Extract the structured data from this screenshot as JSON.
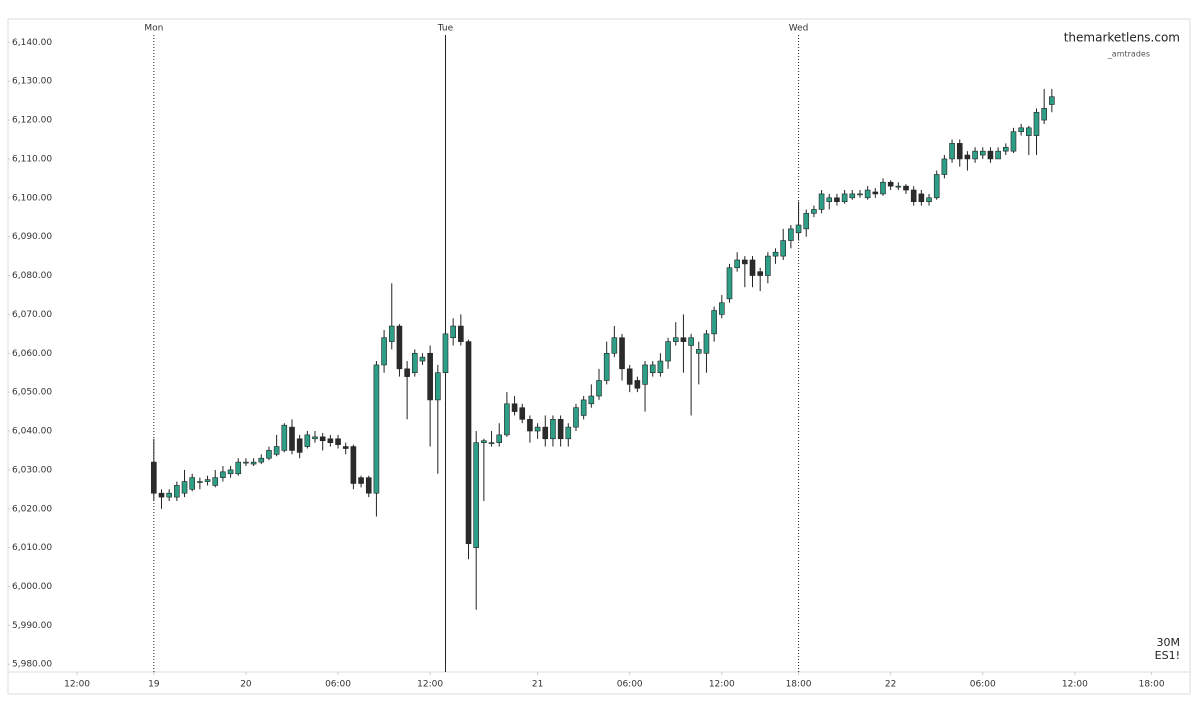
{
  "chart_data": {
    "type": "candlestick",
    "watermark": "themarketlens.com",
    "author": "_amtrades",
    "interval": "30M",
    "symbol": "ES1!",
    "up_color": "#2e9e86",
    "down_color": "#2b2b2b",
    "open": [
      6032,
      6024,
      6023,
      6023,
      6024,
      6025,
      6027,
      6027,
      6026,
      6028,
      6029,
      6029,
      6032,
      6031.5,
      6032,
      6033,
      6034,
      6035,
      6041,
      6038,
      6036,
      6038,
      6038.5,
      6038,
      6038,
      6036,
      6036,
      6028,
      6028,
      6024,
      6057,
      6063,
      6067,
      6056,
      6055,
      6058,
      6060,
      6048,
      6055,
      6064,
      6067,
      6063,
      6010,
      6037,
      6037,
      6037,
      6039,
      6047,
      6046,
      6043,
      6040,
      6041,
      6038,
      6043,
      6038,
      6041,
      6044,
      6047,
      6049,
      6053,
      6060,
      6064,
      6056,
      6053,
      6052,
      6055,
      6055,
      6058,
      6063,
      6064,
      6062,
      6060,
      6060,
      6065,
      6070,
      6074,
      6082,
      6084,
      6084,
      6081,
      6080,
      6085,
      6085,
      6089,
      6091,
      6092,
      6096,
      6097,
      6099,
      6100,
      6099,
      6100,
      6101,
      6100,
      6101.5,
      6101,
      6104,
      6103,
      6103,
      6102,
      6101,
      6099,
      6100,
      6106,
      6110,
      6114,
      6111,
      6110,
      6111,
      6112,
      6110,
      6112,
      6112,
      6117,
      6116,
      6116,
      6120,
      6124
    ],
    "high": [
      6038,
      6025,
      6025,
      6027,
      6030,
      6029,
      6028,
      6028.5,
      6030,
      6031,
      6031,
      6033,
      6033,
      6033,
      6034,
      6036,
      6039,
      6042,
      6043,
      6039,
      6040,
      6040,
      6039.5,
      6039,
      6039,
      6037,
      6036.5,
      6028.5,
      6028.5,
      6058,
      6066,
      6078,
      6067.5,
      6058,
      6061,
      6060,
      6062,
      6057,
      6066,
      6069,
      6070,
      6063.5,
      6040,
      6038,
      6040,
      6042,
      6050,
      6049,
      6047,
      6044,
      6042,
      6044,
      6044,
      6044,
      6042,
      6047,
      6049,
      6052,
      6056,
      6063,
      6067,
      6065,
      6057,
      6054,
      6058,
      6058,
      6060,
      6064,
      6068,
      6070,
      6065,
      6063,
      6066,
      6072,
      6075,
      6083,
      6086,
      6085,
      6085,
      6082,
      6086,
      6087,
      6092,
      6093,
      6099,
      6097,
      6098,
      6102,
      6101,
      6101,
      6102,
      6102,
      6102,
      6103,
      6102.5,
      6105,
      6104.5,
      6104,
      6103.5,
      6103,
      6102,
      6101,
      6107,
      6111,
      6115,
      6115,
      6112,
      6113,
      6113,
      6113,
      6113,
      6114,
      6118,
      6119,
      6118.5,
      6123,
      6128,
      6128
    ],
    "low": [
      6022,
      6020,
      6022,
      6022,
      6023,
      6024.5,
      6025,
      6026,
      6025.5,
      6027,
      6028,
      6028.5,
      6031,
      6031,
      6031.5,
      6032.5,
      6033.5,
      6034.5,
      6034,
      6033,
      6035.5,
      6037,
      6035,
      6036,
      6035.5,
      6034,
      6025,
      6025.5,
      6023,
      6018,
      6055,
      6061,
      6054,
      6043,
      6054,
      6057,
      6036,
      6029,
      6044,
      6062,
      6062,
      6007,
      5994,
      6022,
      6036,
      6036,
      6038.5,
      6044,
      6042,
      6037,
      6038,
      6036,
      6036,
      6036,
      6036,
      6040,
      6043,
      6046,
      6048,
      6052,
      6059,
      6053,
      6050,
      6050,
      6045,
      6054,
      6054,
      6056,
      6062,
      6055,
      6044,
      6052,
      6055,
      6063,
      6069,
      6073,
      6081,
      6077,
      6077,
      6076,
      6078,
      6083,
      6084,
      6087,
      6089,
      6090,
      6095,
      6096,
      6097,
      6098,
      6098.5,
      6099.5,
      6100,
      6099.5,
      6100,
      6100.5,
      6102,
      6102,
      6101,
      6098,
      6098,
      6098,
      6099.5,
      6105,
      6109,
      6108,
      6107,
      6109,
      6110,
      6109,
      6110,
      6111,
      6111.5,
      6116,
      6111,
      6111,
      6119,
      6122
    ],
    "close": [
      6024,
      6023,
      6024,
      6026,
      6027,
      6028,
      6027,
      6027.5,
      6028,
      6029.5,
      6030,
      6032,
      6032,
      6032,
      6033,
      6035,
      6036,
      6041.5,
      6035,
      6034.5,
      6039,
      6038.5,
      6037.5,
      6037,
      6036.5,
      6035.5,
      6026.5,
      6026.5,
      6024,
      6057,
      6064,
      6067,
      6056,
      6054,
      6060,
      6059,
      6048,
      6055,
      6065,
      6067,
      6063,
      6011,
      6037,
      6037.5,
      6037,
      6039,
      6047,
      6045,
      6043,
      6040,
      6041,
      6038,
      6043,
      6038,
      6041,
      6046,
      6048,
      6049,
      6053,
      6060,
      6064,
      6056,
      6052,
      6051,
      6057,
      6057,
      6058,
      6063,
      6064,
      6063,
      6064,
      6061,
      6065,
      6071,
      6073,
      6082,
      6084,
      6083,
      6080,
      6080,
      6085,
      6086,
      6089,
      6092,
      6093,
      6096,
      6097,
      6101,
      6100,
      6099,
      6101,
      6101,
      6101,
      6102,
      6101,
      6104,
      6103,
      6103,
      6102,
      6099,
      6099,
      6100,
      6106,
      6110,
      6114,
      6110,
      6110,
      6112,
      6112,
      6110,
      6112,
      6113,
      6117,
      6118,
      6118,
      6122,
      6123,
      6126
    ],
    "xlim": [
      -19,
      135
    ],
    "xticks": [
      {
        "value": -10,
        "label": "12:00"
      },
      {
        "value": 0,
        "label": "19"
      },
      {
        "value": 12,
        "label": "20"
      },
      {
        "value": 24,
        "label": "06:00"
      },
      {
        "value": 36,
        "label": "12:00"
      },
      {
        "value": 50,
        "label": "21"
      },
      {
        "value": 62,
        "label": "06:00"
      },
      {
        "value": 74,
        "label": "12:00"
      },
      {
        "value": 84,
        "label": "18:00"
      },
      {
        "value": 96,
        "label": "22"
      },
      {
        "value": 108,
        "label": "06:00"
      },
      {
        "value": 120,
        "label": "12:00"
      },
      {
        "value": 130,
        "label": "18:00"
      }
    ],
    "session_lines": [
      {
        "value": 0,
        "label": "Mon",
        "style": "dotted"
      },
      {
        "value": 38,
        "label": "Tue",
        "style": "solid"
      },
      {
        "value": 84,
        "label": "Wed",
        "style": "dotted"
      }
    ],
    "ylim": [
      5978,
      6146
    ],
    "yticks": [
      {
        "value": 6140,
        "label": "6,140.00"
      },
      {
        "value": 6130,
        "label": "6,130.00"
      },
      {
        "value": 6120,
        "label": "6,120.00"
      },
      {
        "value": 6110,
        "label": "6,110.00"
      },
      {
        "value": 6100,
        "label": "6,100.00"
      },
      {
        "value": 6090,
        "label": "6,090.00"
      },
      {
        "value": 6080,
        "label": "6,080.00"
      },
      {
        "value": 6070,
        "label": "6,070.00"
      },
      {
        "value": 6060,
        "label": "6,060.00"
      },
      {
        "value": 6050,
        "label": "6,050.00"
      },
      {
        "value": 6040,
        "label": "6,040.00"
      },
      {
        "value": 6030,
        "label": "6,030.00"
      },
      {
        "value": 6020,
        "label": "6,020.00"
      },
      {
        "value": 6010,
        "label": "6,010.00"
      },
      {
        "value": 6000,
        "label": "6,000.00"
      },
      {
        "value": 5990,
        "label": "5,990.00"
      },
      {
        "value": 5980,
        "label": "5,980.00"
      }
    ]
  }
}
